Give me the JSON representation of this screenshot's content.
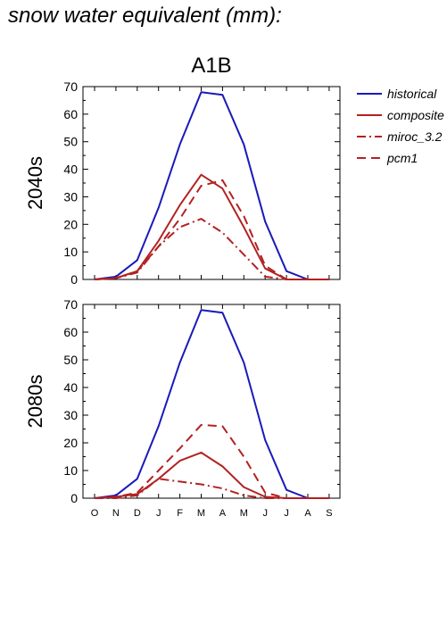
{
  "page_title": "snow water equivalent (mm):",
  "scenario_title": "A1B",
  "legend": [
    {
      "label": "historical",
      "color": "#1a1aba",
      "dash": "solid"
    },
    {
      "label": "composite",
      "color": "#b22222",
      "dash": "solid"
    },
    {
      "label": "miroc_3.2",
      "color": "#b22222",
      "dash": "dashdot"
    },
    {
      "label": "pcm1",
      "color": "#b22222",
      "dash": "dash"
    }
  ],
  "chart_data": [
    {
      "type": "line",
      "row_label": "2040s",
      "categories": [
        "O",
        "N",
        "D",
        "J",
        "F",
        "M",
        "A",
        "M",
        "J",
        "J",
        "A",
        "S"
      ],
      "ylim": [
        0,
        70
      ],
      "yticks": [
        0,
        10,
        20,
        30,
        40,
        50,
        60,
        70
      ],
      "series": [
        {
          "name": "historical",
          "values": [
            0,
            1,
            7,
            26,
            49,
            68,
            67,
            49,
            21,
            3,
            0,
            0
          ]
        },
        {
          "name": "composite",
          "values": [
            0,
            0.5,
            3,
            14,
            27,
            38,
            33,
            19,
            4,
            0,
            0,
            0
          ]
        },
        {
          "name": "miroc_3.2",
          "values": [
            0,
            0.5,
            2.5,
            12,
            19,
            22,
            17,
            9,
            1,
            0,
            0,
            0
          ]
        },
        {
          "name": "pcm1",
          "values": [
            0,
            0.5,
            3,
            12,
            22,
            34,
            36,
            23,
            5,
            0,
            0,
            0
          ]
        }
      ]
    },
    {
      "type": "line",
      "row_label": "2080s",
      "categories": [
        "O",
        "N",
        "D",
        "J",
        "F",
        "M",
        "A",
        "M",
        "J",
        "J",
        "A",
        "S"
      ],
      "ylim": [
        0,
        70
      ],
      "yticks": [
        0,
        10,
        20,
        30,
        40,
        50,
        60,
        70
      ],
      "series": [
        {
          "name": "historical",
          "values": [
            0,
            1,
            7,
            26,
            49,
            68,
            67,
            49,
            21,
            3,
            0,
            0
          ]
        },
        {
          "name": "composite",
          "values": [
            0,
            0.5,
            1.5,
            7,
            13.5,
            16.5,
            11.5,
            4,
            0.5,
            0,
            0,
            0
          ]
        },
        {
          "name": "miroc_3.2",
          "values": [
            0,
            0,
            1,
            7,
            6,
            5,
            3.5,
            1,
            0,
            0,
            0,
            0
          ]
        },
        {
          "name": "pcm1",
          "values": [
            0,
            0.5,
            2,
            10,
            18,
            26.5,
            26,
            15,
            2,
            0,
            0,
            0
          ]
        }
      ]
    }
  ]
}
